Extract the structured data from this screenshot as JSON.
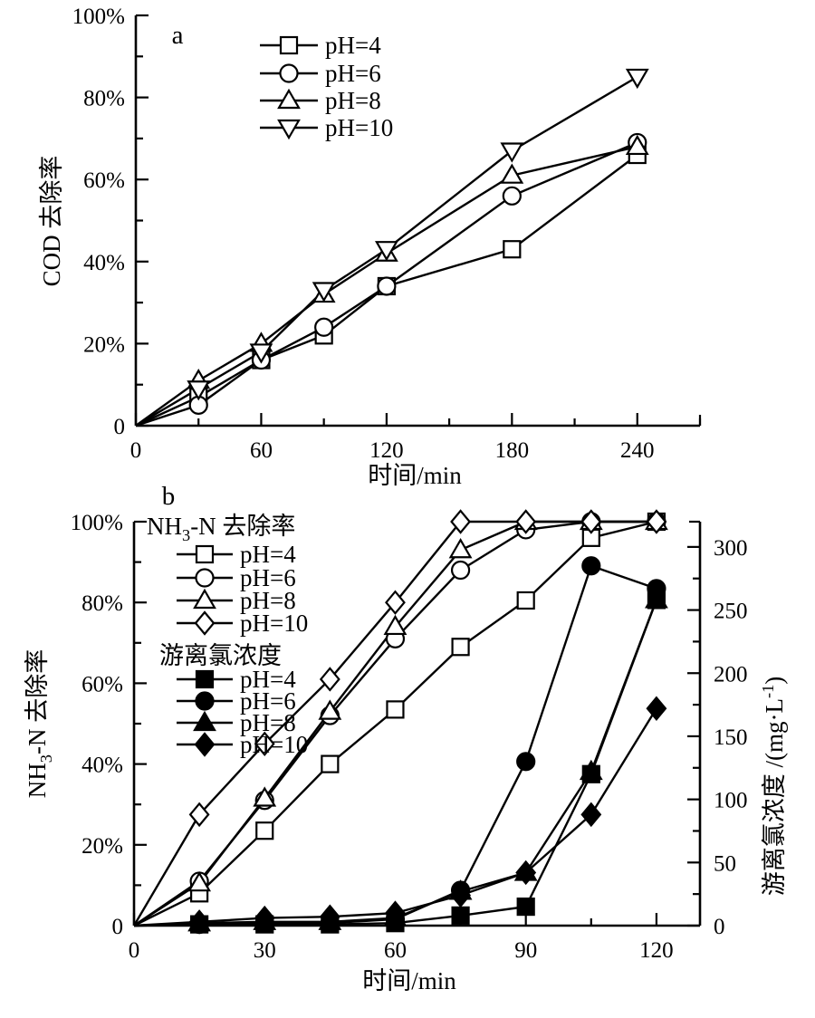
{
  "figure": {
    "background": "#ffffff",
    "ink": "#000000"
  },
  "chart_data": [
    {
      "id": "a",
      "type": "line",
      "panel_label": "a",
      "xlabel": "时间/min",
      "ylabel_parts": [
        {
          "t": "COD 去除率"
        }
      ],
      "xlim": [
        0,
        270
      ],
      "ylim": [
        0,
        100
      ],
      "x_ticks": [
        {
          "v": 0,
          "l": "0"
        },
        {
          "v": 60,
          "l": "60"
        },
        {
          "v": 120,
          "l": "120"
        },
        {
          "v": 180,
          "l": "180"
        },
        {
          "v": 240,
          "l": "240"
        }
      ],
      "x_minor": [
        30,
        90,
        150,
        210,
        270
      ],
      "y_ticks": [
        {
          "v": 0,
          "l": "0"
        },
        {
          "v": 20,
          "l": "20%"
        },
        {
          "v": 40,
          "l": "40%"
        },
        {
          "v": 60,
          "l": "60%"
        },
        {
          "v": 80,
          "l": "80%"
        },
        {
          "v": 100,
          "l": "100%"
        }
      ],
      "y_minor": [
        10,
        30,
        50,
        70,
        90
      ],
      "x": [
        0,
        30,
        60,
        90,
        120,
        180,
        240
      ],
      "series": [
        {
          "name": "pH=4",
          "marker": "square",
          "filled": false,
          "axis": "left",
          "values": [
            0,
            7,
            16,
            22,
            34,
            43,
            66
          ]
        },
        {
          "name": "pH=6",
          "marker": "circle",
          "filled": false,
          "axis": "left",
          "values": [
            0,
            5,
            16,
            24,
            34,
            56,
            69
          ]
        },
        {
          "name": "pH=8",
          "marker": "triangle-up",
          "filled": false,
          "axis": "left",
          "values": [
            0,
            11,
            20,
            32,
            42,
            61,
            68
          ]
        },
        {
          "name": "pH=10",
          "marker": "triangle-down",
          "filled": false,
          "axis": "left",
          "values": [
            0,
            9,
            18,
            33,
            43,
            67,
            85
          ]
        }
      ],
      "legend_groups": [
        {
          "title_parts": null,
          "series_idx": [
            0,
            1,
            2,
            3
          ]
        }
      ]
    },
    {
      "id": "b",
      "type": "line",
      "panel_label": "b",
      "xlabel": "时间/min",
      "ylabel_parts": [
        {
          "t": "NH"
        },
        {
          "t": "3",
          "sub": true
        },
        {
          "t": "-N 去除率"
        }
      ],
      "ylabel_right_parts": [
        {
          "t": "游离氯浓度 /(mg·L"
        },
        {
          "t": "-1",
          "sup": true
        },
        {
          "t": ")"
        }
      ],
      "xlim": [
        0,
        130
      ],
      "ylim": [
        0,
        100
      ],
      "ylim_right": [
        0,
        320
      ],
      "x_ticks": [
        {
          "v": 0,
          "l": "0"
        },
        {
          "v": 30,
          "l": "30"
        },
        {
          "v": 60,
          "l": "60"
        },
        {
          "v": 90,
          "l": "90"
        },
        {
          "v": 120,
          "l": "120"
        }
      ],
      "x_minor": [
        15,
        45,
        75,
        105
      ],
      "y_ticks": [
        {
          "v": 0,
          "l": "0"
        },
        {
          "v": 20,
          "l": "20%"
        },
        {
          "v": 40,
          "l": "40%"
        },
        {
          "v": 60,
          "l": "60%"
        },
        {
          "v": 80,
          "l": "80%"
        },
        {
          "v": 100,
          "l": "100%"
        }
      ],
      "y_minor": [
        10,
        30,
        50,
        70,
        90
      ],
      "y_right_ticks": [
        {
          "v": 0,
          "l": "0"
        },
        {
          "v": 50,
          "l": "50"
        },
        {
          "v": 100,
          "l": "100"
        },
        {
          "v": 150,
          "l": "150"
        },
        {
          "v": 200,
          "l": "200"
        },
        {
          "v": 250,
          "l": "250"
        },
        {
          "v": 300,
          "l": "300"
        }
      ],
      "y_right_minor": [
        25,
        75,
        125,
        175,
        225,
        275
      ],
      "x": [
        0,
        15,
        30,
        45,
        60,
        75,
        90,
        105,
        120
      ],
      "series": [
        {
          "name": "pH=4",
          "marker": "square",
          "filled": false,
          "axis": "left",
          "values": [
            0,
            8,
            23.5,
            40,
            53.5,
            69,
            80.5,
            96,
            100
          ]
        },
        {
          "name": "pH=6",
          "marker": "circle",
          "filled": false,
          "axis": "left",
          "values": [
            0,
            11,
            31,
            52,
            71,
            88,
            98,
            100,
            100
          ]
        },
        {
          "name": "pH=8",
          "marker": "triangle-up",
          "filled": false,
          "axis": "left",
          "values": [
            0,
            10.5,
            31.5,
            53,
            74,
            93,
            100,
            100,
            100
          ]
        },
        {
          "name": "pH=10",
          "marker": "diamond",
          "filled": false,
          "axis": "left",
          "values": [
            0,
            27.5,
            45,
            61,
            80,
            100,
            100,
            100,
            100
          ]
        },
        {
          "name": "pH=4",
          "marker": "square",
          "filled": true,
          "axis": "right",
          "values": [
            0,
            1,
            1,
            1,
            2,
            8,
            15,
            120,
            258
          ]
        },
        {
          "name": "pH=6",
          "marker": "circle",
          "filled": true,
          "axis": "right",
          "values": [
            0,
            1,
            2,
            2,
            5,
            28,
            130,
            285,
            267
          ]
        },
        {
          "name": "pH=8",
          "marker": "triangle-up",
          "filled": true,
          "axis": "right",
          "values": [
            0,
            2,
            3,
            3,
            6,
            27,
            42,
            122,
            258
          ]
        },
        {
          "name": "pH=10",
          "marker": "diamond",
          "filled": true,
          "axis": "right",
          "values": [
            0,
            3,
            6,
            7,
            10,
            24,
            42,
            88,
            172
          ]
        }
      ],
      "legend_groups": [
        {
          "title_parts": [
            {
              "t": "NH"
            },
            {
              "t": "3",
              "sub": true
            },
            {
              "t": "-N 去除率"
            }
          ],
          "series_idx": [
            0,
            1,
            2,
            3
          ]
        },
        {
          "title_parts": [
            {
              "t": "游离氯浓度"
            }
          ],
          "series_idx": [
            4,
            5,
            6,
            7
          ]
        }
      ]
    }
  ]
}
